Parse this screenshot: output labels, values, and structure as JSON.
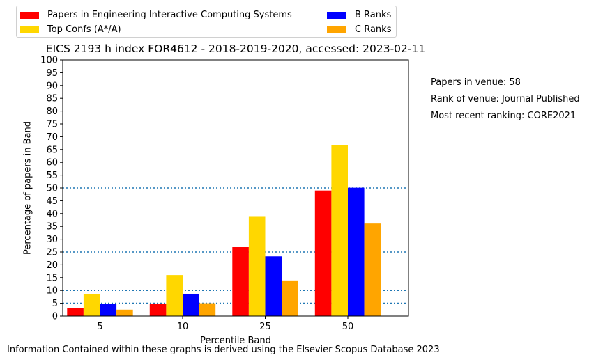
{
  "chart_data": {
    "type": "bar",
    "title": "EICS 2193 h index FOR4612 - 2018-2019-2020, accessed: 2023-02-11",
    "xlabel": "Percentile Band",
    "ylabel": "Percentage of papers in Band",
    "categories": [
      "5",
      "10",
      "25",
      "50"
    ],
    "ylim": [
      0,
      100
    ],
    "yticks": [
      0,
      5,
      10,
      15,
      20,
      25,
      30,
      35,
      40,
      45,
      50,
      55,
      60,
      65,
      70,
      75,
      80,
      85,
      90,
      95,
      100
    ],
    "reference_lines": [
      5,
      10,
      25,
      50
    ],
    "legend_position": "top-left (outside plot)",
    "grid": false,
    "series": [
      {
        "name": "Papers in Engineering Interactive Computing Systems",
        "color": "#ff0000",
        "values": [
          3.1,
          4.9,
          26.9,
          49.0
        ]
      },
      {
        "name": "Top Confs (A*/A)",
        "color": "#ffd700",
        "values": [
          8.5,
          16.0,
          39.0,
          66.7
        ]
      },
      {
        "name": "B Ranks",
        "color": "#0000ff",
        "values": [
          4.7,
          8.7,
          23.3,
          50.1
        ]
      },
      {
        "name": "C Ranks",
        "color": "#ffa500",
        "values": [
          2.5,
          5.0,
          13.9,
          36.1
        ]
      }
    ]
  },
  "side_notes": {
    "papers": "Papers in venue: 58",
    "rank": "Rank of venue: Journal Published",
    "recent": "Most recent ranking: CORE2021"
  },
  "footer": "Information Contained within these graphs is derived using the Elsevier Scopus Database 2023",
  "colors": {
    "reference_line": "#1f77b4"
  }
}
